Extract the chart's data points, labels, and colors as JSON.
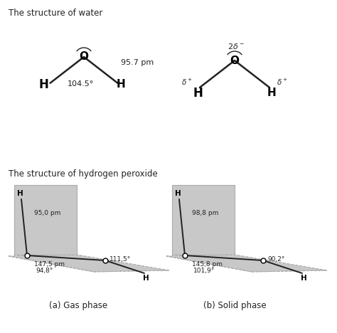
{
  "bg_color": "#ffffff",
  "title_water": "The structure of water",
  "title_peroxide": "The structure of hydrogen peroxide",
  "water_bond_length": "95.7 pm",
  "water_angle": "104.5°",
  "gas_label": "(a) Gas phase",
  "solid_label": "(b) Solid phase",
  "gas_bond_OH": "95,0 pm",
  "gas_bond_OO": "147,5 pm",
  "gas_angle_HOO": "94,8°",
  "gas_angle_OOH": "111,5°",
  "solid_bond_OH": "98,8 pm",
  "solid_bond_OO": "145,8 pm",
  "solid_angle_HOO": "101,9°",
  "solid_angle_OOH": "90,2°",
  "gray_fill": "#c8c8c8",
  "gray_edge": "#aaaaaa",
  "text_color": "#222222"
}
